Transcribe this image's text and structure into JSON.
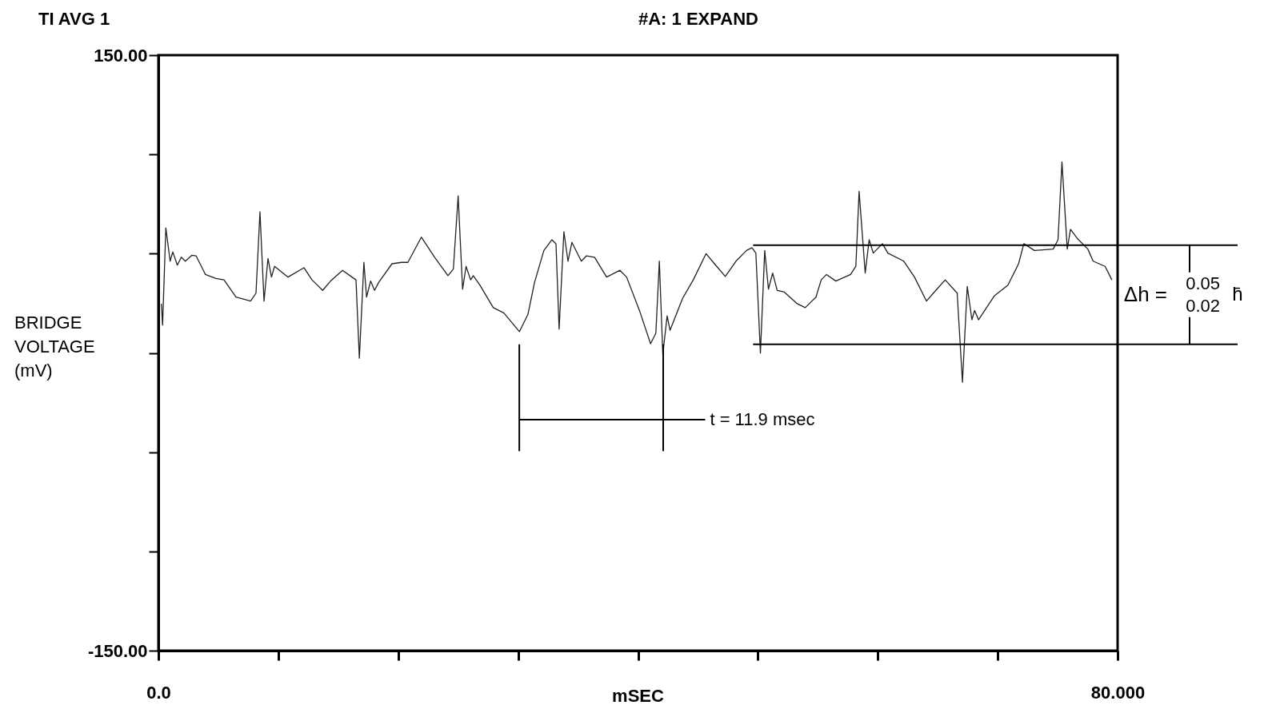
{
  "chart_data": {
    "type": "line",
    "title": "TI AVG 1",
    "subtitle": "#A: 1 EXPAND",
    "xlabel": "mSEC",
    "ylabel": "BRIDGE VOLTAGE (mV)",
    "xlim": [
      0,
      80
    ],
    "ylim": [
      -150,
      150
    ],
    "xticks": [
      {
        "value": 0,
        "label": "0.0"
      },
      {
        "value": 10,
        "label": null
      },
      {
        "value": 20,
        "label": null
      },
      {
        "value": 30,
        "label": null
      },
      {
        "value": 40,
        "label": null
      },
      {
        "value": 50,
        "label": null
      },
      {
        "value": 60,
        "label": null
      },
      {
        "value": 70,
        "label": null
      },
      {
        "value": 80,
        "label": "80.000"
      }
    ],
    "yticks": [
      {
        "value": -150,
        "label": "-150.00"
      },
      {
        "value": -100,
        "label": null
      },
      {
        "value": -50,
        "label": null
      },
      {
        "value": 0,
        "label": null
      },
      {
        "value": 50,
        "label": null
      },
      {
        "value": 100,
        "label": null
      },
      {
        "value": 150,
        "label": "150.00"
      }
    ],
    "grid": false,
    "marker": "none",
    "line_style": "solid",
    "ref_lines": [
      {
        "axis": "y",
        "value": 54.3,
        "label": null,
        "color": "#000000"
      },
      {
        "axis": "y",
        "value": 4.3,
        "label": null,
        "color": "#000000"
      },
      {
        "axis": "x",
        "value": 30.1,
        "label": null,
        "color": "#000000"
      },
      {
        "axis": "x",
        "value": 42.1,
        "label": null,
        "color": "#000000"
      }
    ],
    "annotations": [
      "t = 11.9 msec",
      "Δh =",
      "0.05",
      "0.02",
      "h̄"
    ],
    "series": [
      {
        "type": "line",
        "color": "#000000",
        "x": [
          30.1,
          45.6
        ],
        "values": [
          -33.6,
          -33.6
        ]
      },
      {
        "color": "#222222",
        "x": [
          0.25,
          0.35,
          0.62,
          0.98,
          1.2,
          1.58,
          1.91,
          2.25,
          2.8,
          3.14,
          3.92,
          4.8,
          5.47,
          6.47,
          7.69,
          8.14,
          8.47,
          8.81,
          9.14,
          9.43,
          9.69,
          10.81,
          12.14,
          12.81,
          13.7,
          14.36,
          15.36,
          16.14,
          16.48,
          16.76,
          17.14,
          17.36,
          17.7,
          18.03,
          18.37,
          19.48,
          20.26,
          20.81,
          21.93,
          23.04,
          24.15,
          24.6,
          25.0,
          25.37,
          25.66,
          26.04,
          26.26,
          26.82,
          27.93,
          28.82,
          30.11,
          30.82,
          31.37,
          32.15,
          32.82,
          33.16,
          33.42,
          33.82,
          34.16,
          34.49,
          35.27,
          35.71,
          36.38,
          37.38,
          38.49,
          39.05,
          40.16,
          41.05,
          41.49,
          41.78,
          42.07,
          42.43,
          42.67,
          43.72,
          44.61,
          45.68,
          46.38,
          47.28,
          48.17,
          49.05,
          49.5,
          49.83,
          50.21,
          50.57,
          50.88,
          51.23,
          51.61,
          52.17,
          53.28,
          53.95,
          54.84,
          55.28,
          55.72,
          56.5,
          57.73,
          58.17,
          58.44,
          58.95,
          59.28,
          59.62,
          60.39,
          60.84,
          62.17,
          63.06,
          64.06,
          64.84,
          65.62,
          66.62,
          67.06,
          67.46,
          67.85,
          68.07,
          68.4,
          69.73,
          70.85,
          71.74,
          72.18,
          73.07,
          74.63,
          75.03,
          75.36,
          75.8,
          76.07,
          76.63,
          77.52,
          77.96,
          78.96,
          79.52
        ],
        "values": [
          24.8,
          14.0,
          63.0,
          46.2,
          50.9,
          44.2,
          48.2,
          46.2,
          49.2,
          48.9,
          39.5,
          37.5,
          36.8,
          28.1,
          26.1,
          30.1,
          71.1,
          26.1,
          47.6,
          38.2,
          43.6,
          38.2,
          42.9,
          36.8,
          31.5,
          36.2,
          41.6,
          38.2,
          36.8,
          -2.7,
          45.6,
          28.1,
          36.2,
          31.5,
          35.5,
          44.9,
          45.6,
          45.6,
          58.3,
          48.2,
          38.9,
          42.2,
          79.1,
          32.1,
          43.6,
          36.8,
          38.9,
          34.1,
          22.8,
          20.1,
          10.7,
          19.4,
          35.5,
          51.6,
          57.0,
          55.0,
          12.0,
          61.0,
          46.2,
          55.7,
          46.2,
          48.9,
          48.2,
          38.2,
          41.6,
          38.2,
          20.7,
          4.6,
          10.0,
          46.2,
          -0.7,
          18.7,
          11.4,
          27.5,
          36.8,
          50.0,
          44.9,
          38.5,
          46.2,
          51.6,
          53.0,
          50.3,
          -0.1,
          51.6,
          32.1,
          40.2,
          31.5,
          30.8,
          24.8,
          22.8,
          28.1,
          36.8,
          39.5,
          36.2,
          39.5,
          43.6,
          81.4,
          40.2,
          57.0,
          50.3,
          55.0,
          50.3,
          46.2,
          38.2,
          26.1,
          31.5,
          36.8,
          30.1,
          -14.8,
          33.5,
          16.7,
          21.4,
          16.7,
          28.8,
          34.1,
          44.9,
          55.0,
          51.6,
          52.3,
          57.0,
          96.2,
          52.3,
          62.3,
          57.7,
          52.3,
          46.2,
          43.6,
          36.8
        ]
      }
    ]
  }
}
